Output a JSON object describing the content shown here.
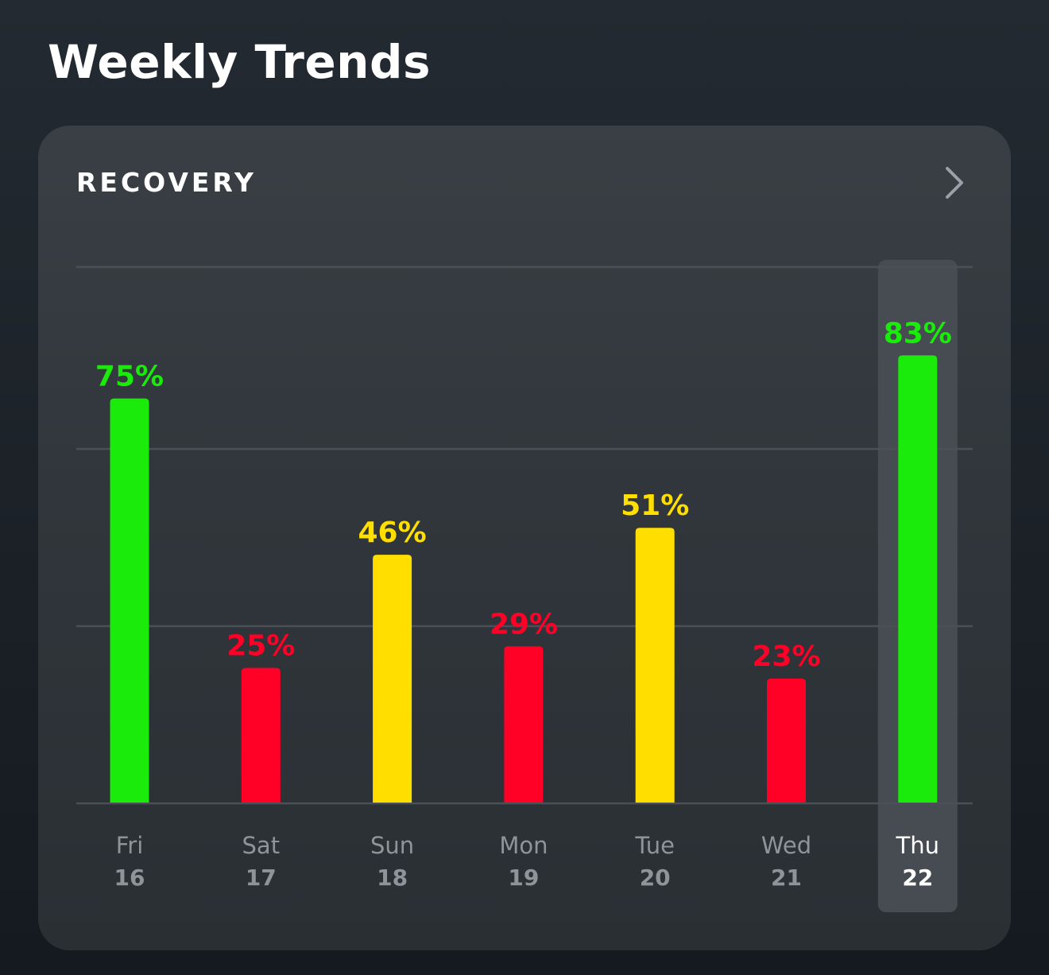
{
  "page": {
    "title": "Weekly Trends"
  },
  "card": {
    "title": "RECOVERY",
    "chevron_icon": "chevron-right-icon"
  },
  "colors": {
    "green": "#1aeb0a",
    "yellow": "#ffde00",
    "red": "#ff0026",
    "selected_highlight": "#464c51",
    "grid": "#4a5055"
  },
  "selected_index": 6,
  "chart_data": {
    "type": "bar",
    "title": "RECOVERY",
    "ylim": [
      0,
      100
    ],
    "grid": true,
    "categories": [
      "Fri 16",
      "Sat 17",
      "Sun 18",
      "Mon 19",
      "Tue 20",
      "Wed 21",
      "Thu 22"
    ],
    "days": [
      "Fri",
      "Sat",
      "Sun",
      "Mon",
      "Tue",
      "Wed",
      "Thu"
    ],
    "dates": [
      "16",
      "17",
      "18",
      "19",
      "20",
      "21",
      "22"
    ],
    "values": [
      75,
      25,
      46,
      29,
      51,
      23,
      83
    ],
    "value_labels": [
      "75%",
      "25%",
      "46%",
      "29%",
      "51%",
      "23%",
      "83%"
    ],
    "bar_colors": [
      "green",
      "red",
      "yellow",
      "red",
      "yellow",
      "red",
      "green"
    ]
  }
}
